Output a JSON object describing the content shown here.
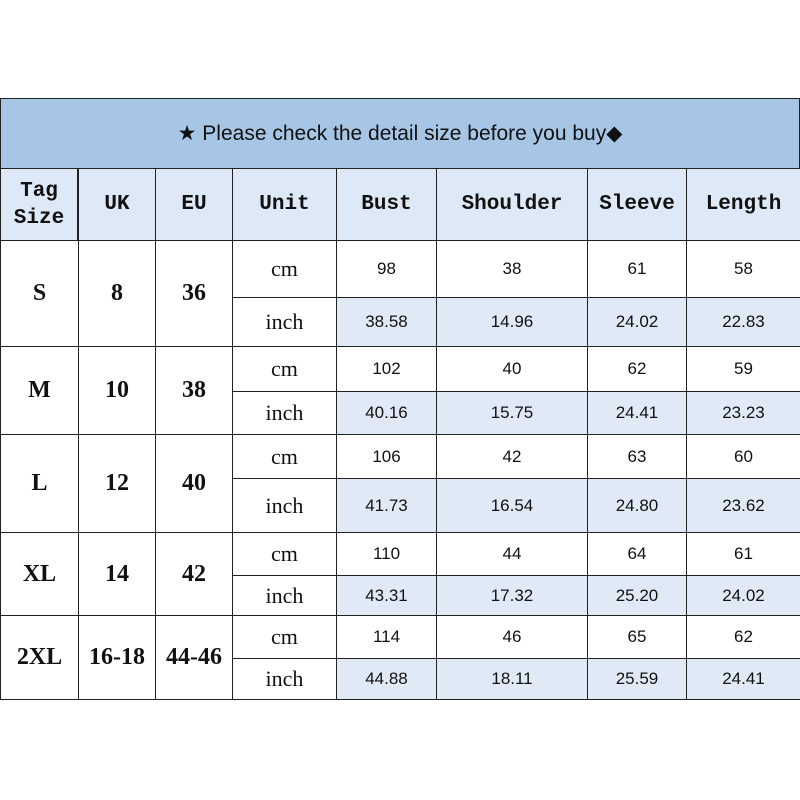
{
  "table": {
    "title": "★ Please check the detail size before you buy◆",
    "header": [
      "Tag Size",
      "UK",
      "EU",
      "Unit",
      "Bust",
      "Shoulder",
      "Sleeve",
      "Length"
    ],
    "groups": [
      {
        "tag": "S",
        "uk": "8",
        "eu": "36",
        "lines": [
          [
            "cm",
            "98",
            "38",
            "61",
            "58"
          ],
          [
            "inch",
            "38.58",
            "14.96",
            "24.02",
            "22.83"
          ]
        ]
      },
      {
        "tag": "M",
        "uk": "10",
        "eu": "38",
        "lines": [
          [
            "cm",
            "102",
            "40",
            "62",
            "59"
          ],
          [
            "inch",
            "40.16",
            "15.75",
            "24.41",
            "23.23"
          ]
        ]
      },
      {
        "tag": "L",
        "uk": "12",
        "eu": "40",
        "lines": [
          [
            "cm",
            "106",
            "42",
            "63",
            "60"
          ],
          [
            "inch",
            "41.73",
            "16.54",
            "24.80",
            "23.62"
          ]
        ]
      },
      {
        "tag": "XL",
        "uk": "14",
        "eu": "42",
        "lines": [
          [
            "cm",
            "110",
            "44",
            "64",
            "61"
          ],
          [
            "inch",
            "43.31",
            "17.32",
            "25.20",
            "24.02"
          ]
        ]
      },
      {
        "tag": "2XL",
        "uk": "16-18",
        "eu": "44-46",
        "lines": [
          [
            "cm",
            "114",
            "46",
            "65",
            "62"
          ],
          [
            "inch",
            "44.88",
            "18.11",
            "25.59",
            "24.41"
          ]
        ]
      }
    ]
  }
}
